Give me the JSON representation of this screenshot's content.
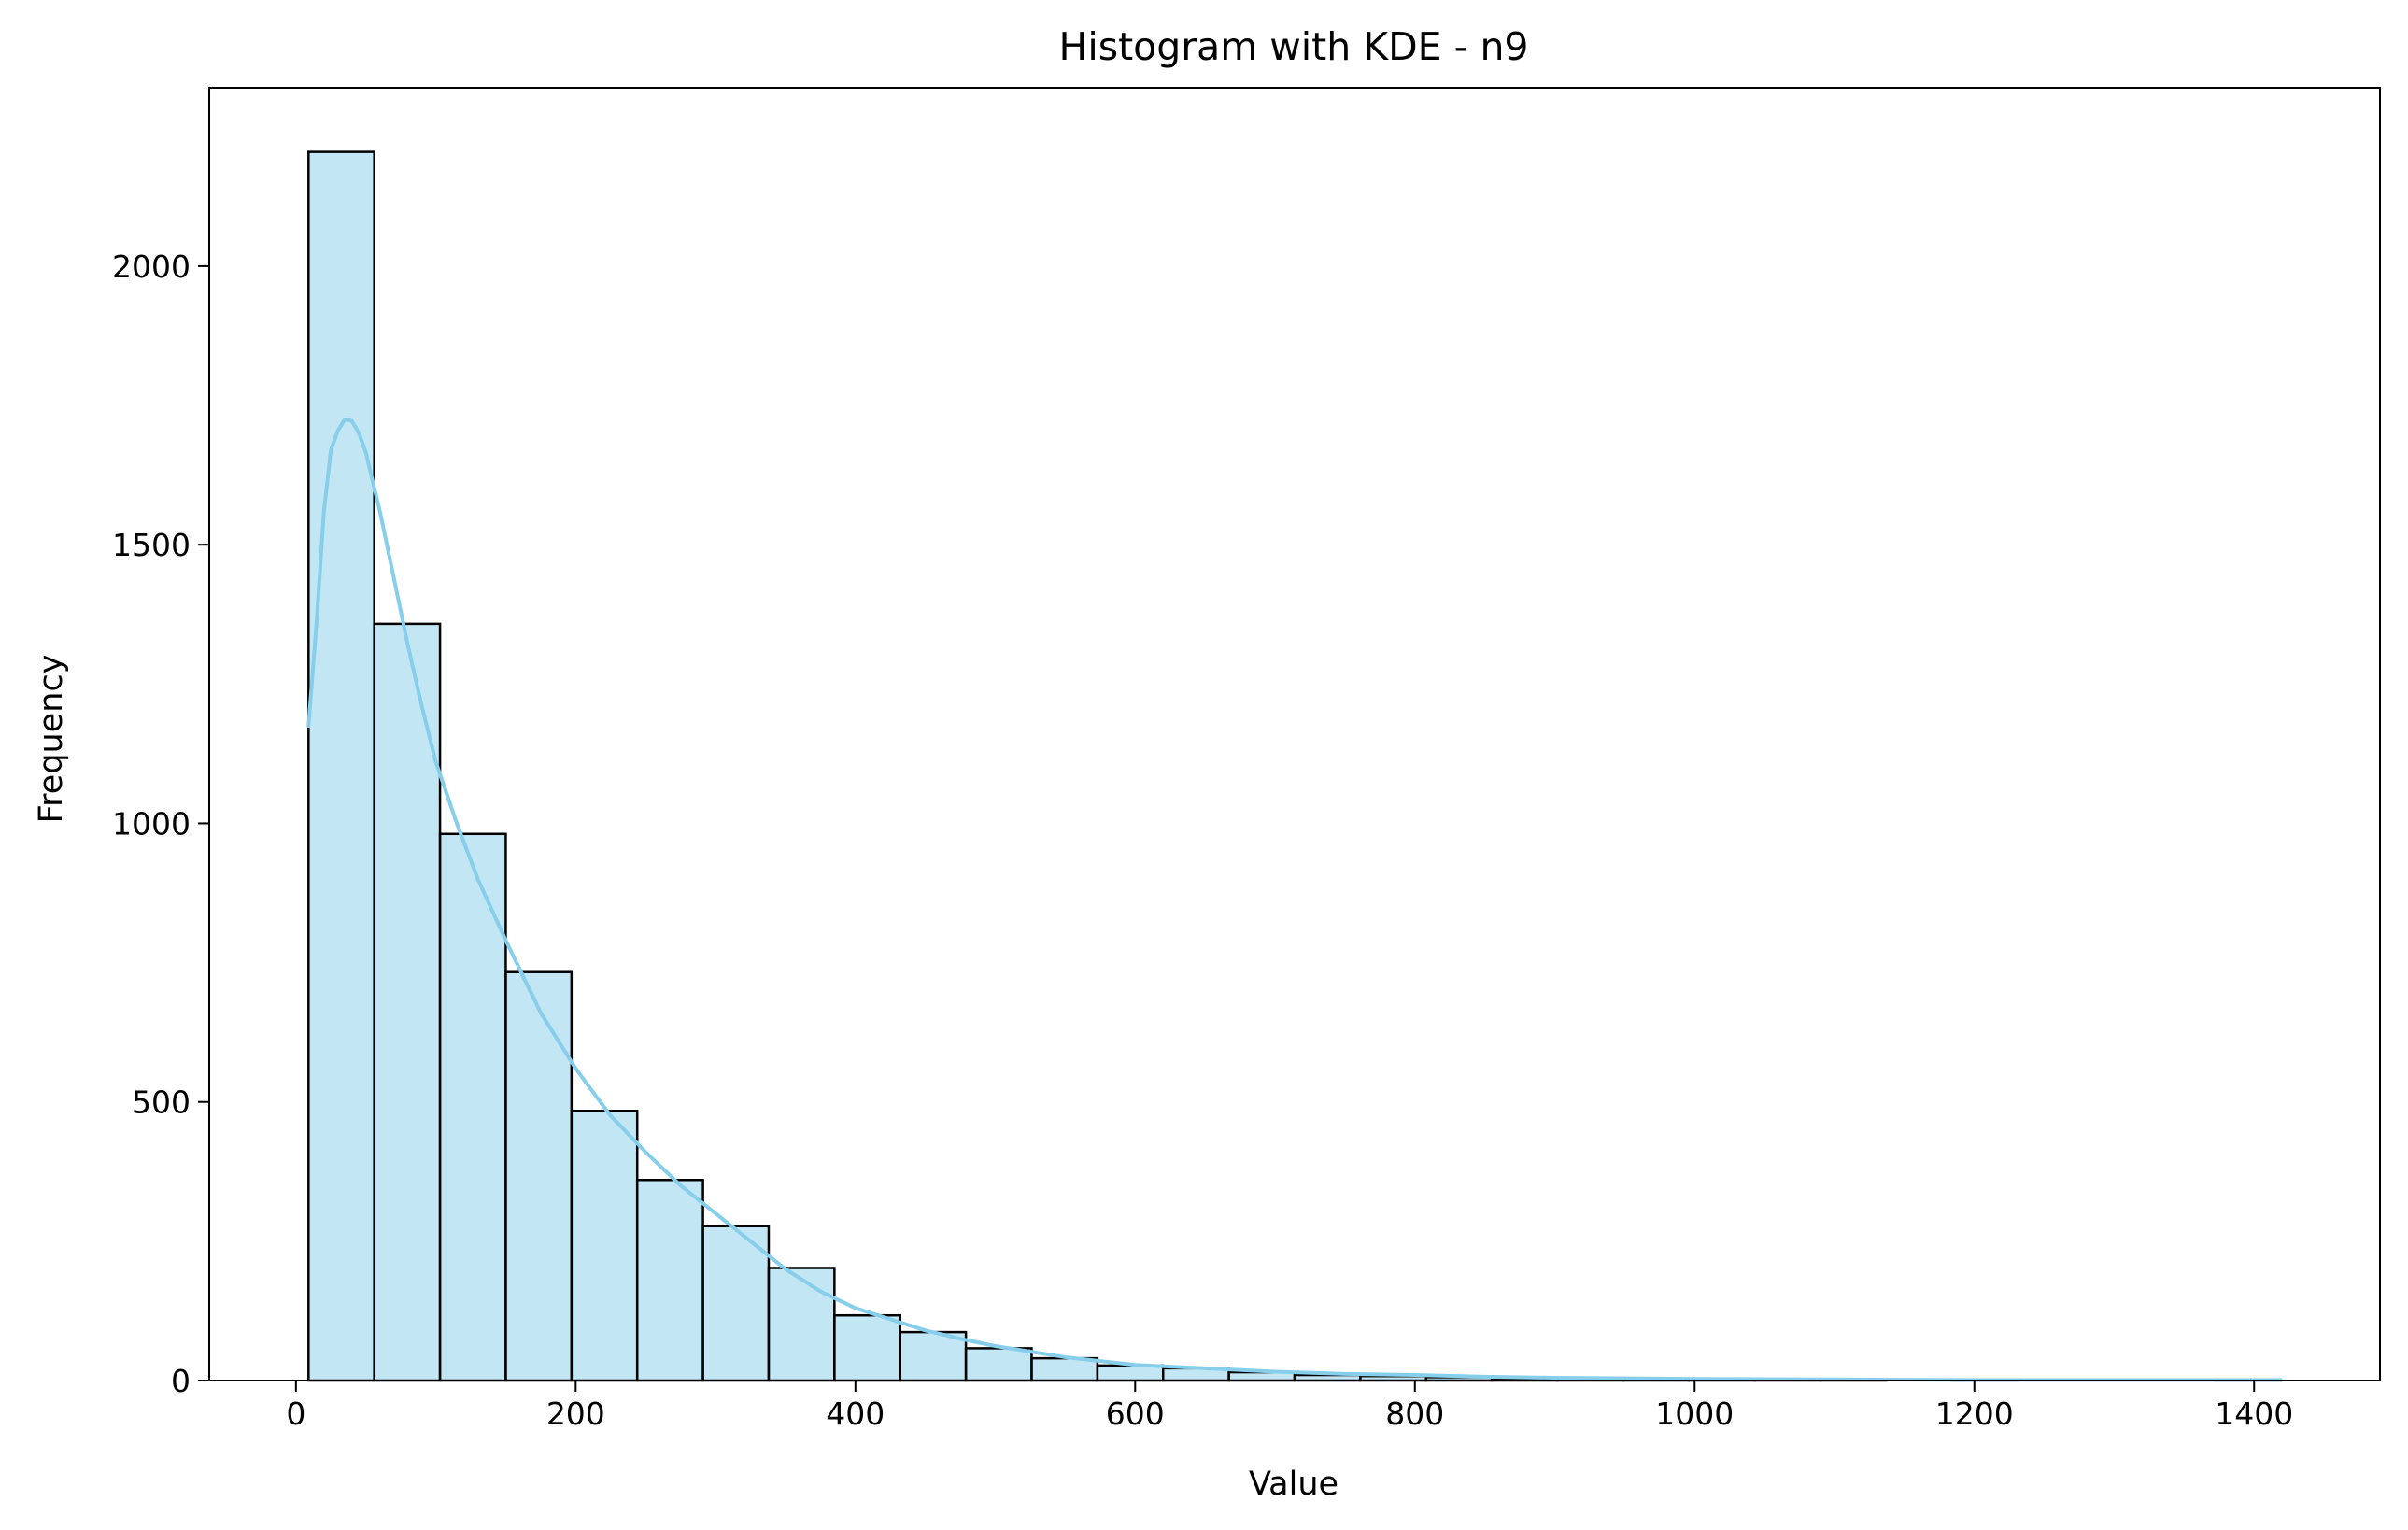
{
  "chart_data": {
    "type": "bar",
    "title": "Histogram with KDE - n9",
    "xlabel": "Value",
    "ylabel": "Frequency",
    "xlim": [
      -62,
      1490
    ],
    "ylim": [
      0,
      2320
    ],
    "x_ticks": [
      0,
      200,
      400,
      600,
      800,
      1000,
      1200,
      1400
    ],
    "y_ticks": [
      0,
      500,
      1000,
      1500,
      2000
    ],
    "grid": false,
    "bar_color": "#87ceeb",
    "bar_edge_color": "#000000",
    "kde_color": "#87ceeb",
    "bins": [
      {
        "x0": 9,
        "x1": 56,
        "count": 2205
      },
      {
        "x0": 56,
        "x1": 103,
        "count": 1358
      },
      {
        "x0": 103,
        "x1": 150,
        "count": 981
      },
      {
        "x0": 150,
        "x1": 197,
        "count": 733
      },
      {
        "x0": 197,
        "x1": 244,
        "count": 484
      },
      {
        "x0": 244,
        "x1": 291,
        "count": 360
      },
      {
        "x0": 291,
        "x1": 338,
        "count": 277
      },
      {
        "x0": 338,
        "x1": 385,
        "count": 202
      },
      {
        "x0": 385,
        "x1": 432,
        "count": 117
      },
      {
        "x0": 432,
        "x1": 479,
        "count": 87
      },
      {
        "x0": 479,
        "x1": 526,
        "count": 58
      },
      {
        "x0": 526,
        "x1": 573,
        "count": 40
      },
      {
        "x0": 573,
        "x1": 620,
        "count": 27
      },
      {
        "x0": 620,
        "x1": 667,
        "count": 22
      },
      {
        "x0": 667,
        "x1": 714,
        "count": 15
      },
      {
        "x0": 714,
        "x1": 761,
        "count": 10
      },
      {
        "x0": 761,
        "x1": 808,
        "count": 8
      },
      {
        "x0": 808,
        "x1": 855,
        "count": 6
      },
      {
        "x0": 855,
        "x1": 902,
        "count": 3
      },
      {
        "x0": 902,
        "x1": 949,
        "count": 3
      },
      {
        "x0": 949,
        "x1": 996,
        "count": 2
      },
      {
        "x0": 996,
        "x1": 1043,
        "count": 1
      },
      {
        "x0": 1043,
        "x1": 1090,
        "count": 1
      },
      {
        "x0": 1090,
        "x1": 1137,
        "count": 1
      },
      {
        "x0": 1137,
        "x1": 1184,
        "count": 0
      },
      {
        "x0": 1184,
        "x1": 1231,
        "count": 1
      },
      {
        "x0": 1231,
        "x1": 1278,
        "count": 0
      },
      {
        "x0": 1278,
        "x1": 1325,
        "count": 0
      },
      {
        "x0": 1325,
        "x1": 1372,
        "count": 0
      },
      {
        "x0": 1372,
        "x1": 1419,
        "count": 1
      }
    ],
    "kde": {
      "x": [
        9,
        15,
        20,
        25,
        30,
        35,
        40,
        45,
        50,
        60,
        70,
        80,
        90,
        100,
        115,
        130,
        150,
        175,
        200,
        225,
        250,
        275,
        300,
        325,
        350,
        375,
        400,
        425,
        450,
        475,
        500,
        550,
        600,
        650,
        700,
        750,
        800,
        850,
        900,
        1000,
        1100,
        1200,
        1300,
        1419
      ],
      "y": [
        1175,
        1370,
        1560,
        1670,
        1705,
        1725,
        1722,
        1700,
        1665,
        1560,
        1440,
        1320,
        1210,
        1110,
        1000,
        900,
        790,
        660,
        560,
        475,
        410,
        350,
        300,
        250,
        200,
        160,
        130,
        110,
        90,
        75,
        62,
        42,
        28,
        22,
        16,
        12,
        10,
        7,
        5,
        3,
        2,
        1,
        1,
        1
      ]
    }
  }
}
